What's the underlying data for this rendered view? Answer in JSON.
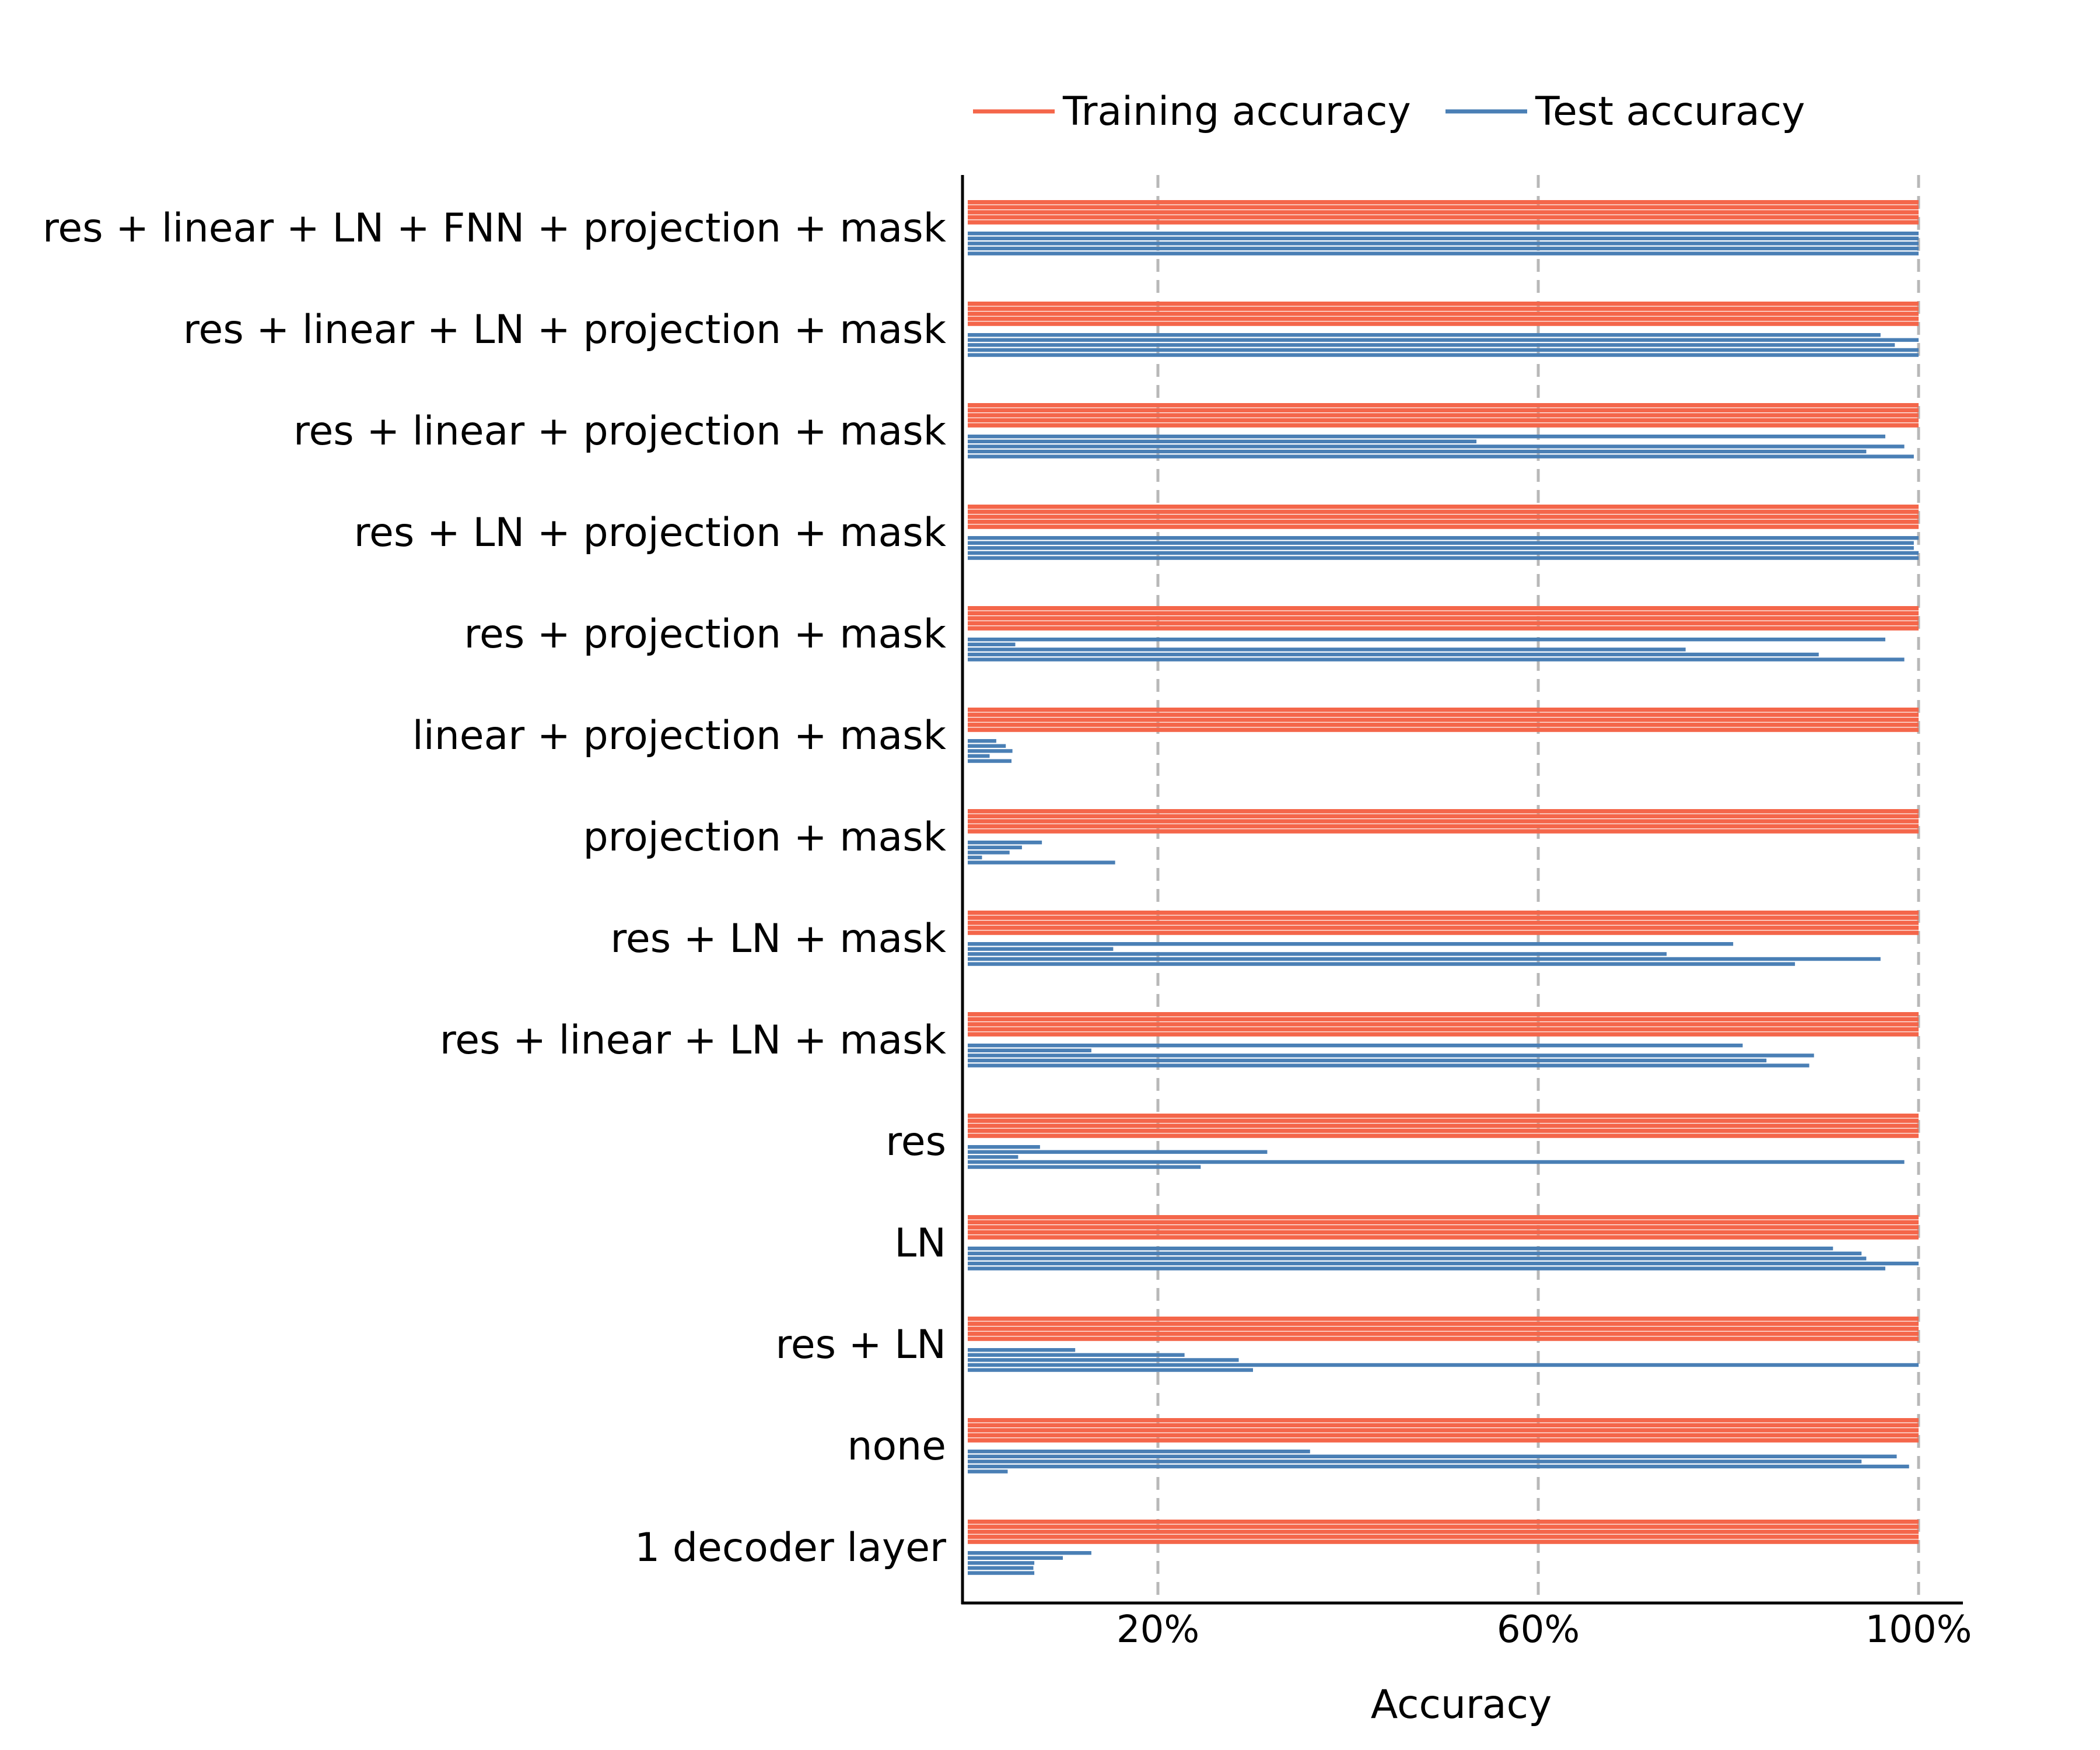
{
  "chart_data": {
    "type": "bar",
    "orientation": "horizontal",
    "xlabel": "Accuracy",
    "xlim": [
      0,
      105
    ],
    "xticks": [
      20,
      60,
      100
    ],
    "xtick_labels": [
      "20%",
      "60%",
      "100%"
    ],
    "grid": "vertical dashed at ticks",
    "legend": {
      "placement": "top",
      "entries": [
        {
          "label": "Training accuracy",
          "color": "#f4664a"
        },
        {
          "label": "Test accuracy",
          "color": "#4a7fb5"
        }
      ]
    },
    "categories": [
      "res + linear + LN + FNN + projection + mask",
      "res + linear + LN + projection + mask",
      "res + linear + projection + mask",
      "res + LN + projection + mask",
      "res + projection + mask",
      "linear + projection + mask",
      "projection + mask",
      "res + LN + mask",
      "res + linear + LN + mask",
      "res",
      "LN",
      "res + LN",
      "none",
      "1 decoder layer"
    ],
    "series": [
      {
        "name": "Training accuracy",
        "color": "#f4664a",
        "values": [
          [
            100,
            100,
            100,
            100,
            100
          ],
          [
            100,
            100,
            100,
            100,
            100
          ],
          [
            100,
            100,
            100,
            100,
            100
          ],
          [
            100,
            100,
            100,
            100,
            100
          ],
          [
            100,
            100,
            100,
            100,
            100
          ],
          [
            100,
            100,
            100,
            100,
            100
          ],
          [
            100,
            100,
            100,
            100,
            100
          ],
          [
            100,
            100,
            100,
            100,
            100
          ],
          [
            100,
            100,
            100,
            100,
            100
          ],
          [
            100,
            100,
            100,
            100,
            100
          ],
          [
            100,
            100,
            100,
            100,
            100
          ],
          [
            100,
            100,
            100,
            100,
            100
          ],
          [
            100,
            100,
            100,
            100,
            100
          ],
          [
            100,
            100,
            100,
            100,
            100
          ]
        ]
      },
      {
        "name": "Test accuracy",
        "color": "#4a7fb5",
        "values": [
          [
            100,
            100,
            100,
            100,
            100
          ],
          [
            96,
            100,
            97.5,
            100,
            100
          ],
          [
            96.5,
            53.5,
            98.5,
            94.5,
            99.5
          ],
          [
            100,
            99.5,
            99.5,
            100,
            100
          ],
          [
            96.5,
            5,
            75.5,
            89.5,
            98.5
          ],
          [
            3,
            4,
            4.7,
            2.3,
            4.6
          ],
          [
            7.8,
            5.7,
            4.4,
            1.5,
            15.5
          ],
          [
            80.5,
            15.3,
            73.5,
            96,
            87
          ],
          [
            81.5,
            13,
            89,
            84,
            88.5
          ],
          [
            7.6,
            31.5,
            5.3,
            98.5,
            24.5
          ],
          [
            91,
            94,
            94.5,
            100,
            96.5
          ],
          [
            11.3,
            22.8,
            28.5,
            100,
            30
          ],
          [
            36,
            97.7,
            94,
            99,
            4.2
          ],
          [
            13,
            10,
            7,
            6.9,
            7
          ]
        ]
      }
    ]
  }
}
